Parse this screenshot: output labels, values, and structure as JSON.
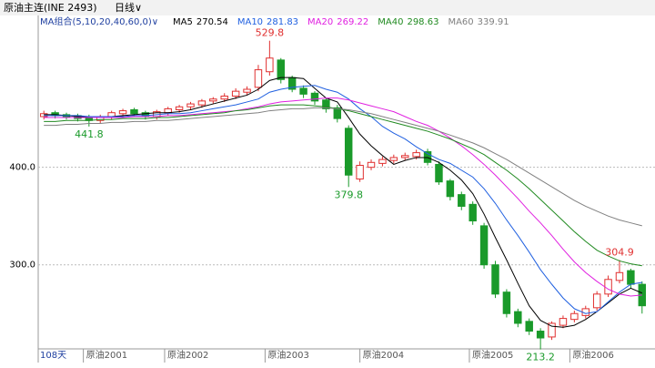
{
  "header": {
    "title": "原油主连(INE 2493)",
    "period": "日线∨"
  },
  "chart_data": {
    "type": "candlestick",
    "ma_group": "MA组合(5,10,20,40,60,0)∨",
    "days": "108天",
    "ylim": [
      211,
      551
    ],
    "yticks": [
      {
        "value": 400,
        "label": "400.0"
      },
      {
        "value": 300,
        "label": "300.0"
      }
    ],
    "grid": true,
    "up_color": "#e03030",
    "down_color": "#1a9a2a",
    "xticks": [
      {
        "value": 3.5,
        "label": "原油2001"
      },
      {
        "value": 10.7,
        "label": "原油2002"
      },
      {
        "value": 19.6,
        "label": "原油2003"
      },
      {
        "value": 28,
        "label": "原油2004"
      },
      {
        "value": 37.7,
        "label": "原油2005"
      },
      {
        "value": 46.6,
        "label": "原油2006"
      }
    ],
    "open": [
      452,
      456,
      454,
      453,
      451,
      448,
      452,
      455,
      459,
      456,
      452,
      456,
      459,
      462,
      464,
      468,
      470,
      473,
      477,
      482,
      498,
      510,
      492,
      481,
      476,
      469,
      461,
      440,
      388,
      400,
      404,
      407,
      410,
      411,
      416,
      403,
      386,
      372,
      362,
      340,
      300,
      272,
      252,
      242,
      232,
      226,
      238,
      244,
      248,
      256,
      270,
      284,
      294,
      280
    ],
    "high": [
      458,
      458,
      456,
      455,
      454,
      454,
      458,
      460,
      461,
      458,
      459,
      462,
      464,
      467,
      470,
      472,
      476,
      481,
      483,
      505,
      529.8,
      512,
      494,
      484,
      478,
      471,
      464,
      443,
      406,
      408,
      411,
      413,
      415,
      418,
      419,
      406,
      388,
      375,
      365,
      343,
      304,
      275,
      255,
      245,
      235,
      242,
      248,
      253,
      258,
      273,
      289,
      304.9,
      296,
      283
    ],
    "low": [
      449,
      450,
      449,
      447,
      441.8,
      445,
      449,
      452,
      452,
      449,
      449,
      453,
      456,
      459,
      461,
      465,
      467,
      470,
      474,
      478,
      494,
      486,
      477,
      471,
      464,
      456,
      446,
      379.8,
      385,
      397,
      401,
      404,
      407,
      408,
      402,
      382,
      366,
      356,
      341,
      296,
      266,
      246,
      236,
      228,
      213.2,
      223,
      235,
      241,
      245,
      253,
      267,
      281,
      276,
      250
    ],
    "close": [
      455,
      453,
      452,
      450,
      448,
      452,
      456,
      458,
      455,
      452,
      457,
      460,
      462,
      465,
      468,
      470,
      473,
      478,
      480,
      500,
      512,
      490,
      480,
      475,
      468,
      460,
      450,
      392,
      402,
      405,
      408,
      410,
      412,
      415,
      405,
      385,
      370,
      360,
      345,
      300,
      270,
      250,
      240,
      232,
      225,
      240,
      245,
      250,
      255,
      270,
      285,
      292,
      280,
      258
    ],
    "annotations": [
      {
        "index": 20,
        "value": 529.8,
        "kind": "high"
      },
      {
        "index": 4,
        "value": 441.8,
        "kind": "low"
      },
      {
        "index": 27,
        "value": 379.8,
        "kind": "low"
      },
      {
        "index": 44,
        "value": 213.2,
        "kind": "low"
      },
      {
        "index": 51,
        "value": 304.9,
        "kind": "high"
      }
    ],
    "series": [
      {
        "name": "MA5",
        "last": 270.54,
        "color": "#000000",
        "values": [
          454,
          454,
          453,
          452,
          452,
          451,
          452,
          453,
          454,
          455,
          456,
          456,
          457,
          459,
          462,
          465,
          468,
          471,
          474,
          480,
          489,
          492,
          492,
          491,
          481,
          471,
          467,
          451,
          434,
          422,
          412,
          403,
          407,
          410,
          410,
          405,
          397,
          387,
          373,
          352,
          328,
          305,
          281,
          258,
          243,
          237,
          236,
          238,
          244,
          252,
          261,
          270,
          276,
          271
        ]
      },
      {
        "name": "MA10",
        "last": 281.83,
        "color": "#2060e0",
        "values": [
          453,
          453,
          453,
          453,
          452,
          452,
          452,
          452,
          453,
          453,
          454,
          455,
          455,
          456,
          458,
          460,
          462,
          464,
          467,
          470,
          477,
          480,
          482,
          483,
          484,
          480,
          477,
          470,
          460,
          452,
          442,
          435,
          429,
          421,
          414,
          408,
          404,
          397,
          390,
          378,
          363,
          346,
          330,
          313,
          295,
          280,
          266,
          255,
          250,
          252,
          262,
          272,
          280,
          282
        ]
      },
      {
        "name": "MA20",
        "last": 269.22,
        "color": "#e020e0",
        "values": [
          451,
          451,
          451,
          451,
          451,
          451,
          451,
          451,
          452,
          452,
          452,
          453,
          453,
          454,
          455,
          456,
          457,
          458,
          460,
          462,
          465,
          467,
          468,
          469,
          470,
          471,
          471,
          469,
          466,
          463,
          460,
          457,
          452,
          447,
          443,
          437,
          430,
          422,
          413,
          403,
          392,
          380,
          368,
          355,
          343,
          330,
          316,
          303,
          292,
          283,
          275,
          270,
          268,
          269
        ]
      },
      {
        "name": "MA40",
        "last": 298.63,
        "color": "#208a20",
        "values": [
          447,
          447,
          448,
          448,
          448,
          449,
          449,
          450,
          450,
          450,
          451,
          451,
          452,
          453,
          454,
          455,
          456,
          458,
          459,
          461,
          463,
          464,
          464,
          464,
          463,
          462,
          460,
          458,
          455,
          452,
          449,
          446,
          443,
          440,
          437,
          433,
          429,
          424,
          419,
          413,
          405,
          397,
          388,
          378,
          367,
          356,
          345,
          334,
          324,
          315,
          309,
          304,
          301,
          299
        ]
      },
      {
        "name": "MA60",
        "last": 339.91,
        "color": "#808080",
        "values": [
          443,
          443,
          444,
          444,
          445,
          445,
          446,
          446,
          447,
          447,
          448,
          448,
          449,
          450,
          451,
          452,
          453,
          454,
          455,
          456,
          458,
          459,
          460,
          460,
          461,
          461,
          460,
          459,
          457,
          455,
          452,
          449,
          446,
          443,
          440,
          437,
          433,
          429,
          425,
          420,
          414,
          408,
          401,
          394,
          387,
          380,
          373,
          366,
          360,
          355,
          350,
          346,
          343,
          340
        ]
      }
    ]
  }
}
